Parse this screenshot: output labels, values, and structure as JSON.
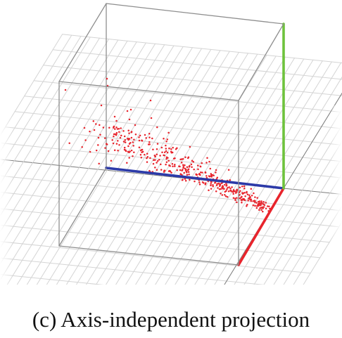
{
  "caption": "(c)  Axis-independent projection",
  "colors": {
    "background": "#ffffff",
    "grid_line": "#d4d4d4",
    "grid_axis": "#7a7a7a",
    "box_edge": "#8e8e8e",
    "points": "#e8242c",
    "axis_x": "#e8242c",
    "axis_y": "#6ec23c",
    "axis_z": "#2c3aa8"
  },
  "points_count": 420
}
